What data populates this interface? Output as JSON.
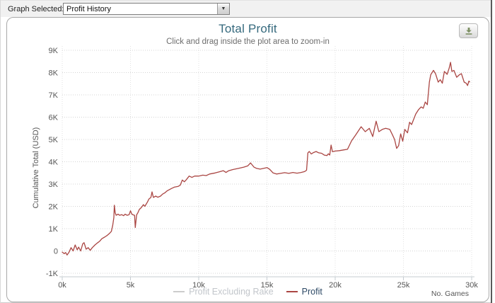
{
  "toolbar": {
    "label": "Graph Selected:",
    "value": "Profit History"
  },
  "chart": {
    "title": "Total Profit",
    "subtitle": "Click and drag inside the plot area to zoom-in",
    "y_axis_title": "Cumulative Total (USD)",
    "x_axis_title": "No. Games",
    "legend": [
      {
        "label": "Profit Excluding Rake",
        "text_color": "#c2c6cb",
        "line_color": "#cccccc",
        "active": false
      },
      {
        "label": "Profit",
        "text_color": "#2e4a66",
        "line_color": "#AA4643",
        "active": true
      }
    ]
  },
  "colors": {
    "line": "#AA4643",
    "title": "#35697d",
    "subtitle": "#6e6e6e",
    "axis_label": "#565656",
    "grid": "#d4d4d4",
    "grid_vertical": "#e2e2e2",
    "axis_line": "#c6ccd2",
    "download_icon": "#7d8f63",
    "dropdown_arrow": "#333333"
  },
  "chart_data": {
    "type": "line",
    "title": "Total Profit",
    "subtitle": "Click and drag inside the plot area to zoom-in",
    "xlabel": "No. Games",
    "ylabel": "Cumulative Total (USD)",
    "x_unit": "thousands of games",
    "y_unit": "thousands of USD",
    "xlim": [
      0,
      30
    ],
    "ylim": [
      -1,
      9
    ],
    "grid": "dotted",
    "legend_position": "bottom-center",
    "x_ticks": [
      {
        "v": 0,
        "label": "0k"
      },
      {
        "v": 5,
        "label": "5k"
      },
      {
        "v": 10,
        "label": "10k"
      },
      {
        "v": 15,
        "label": "15k"
      },
      {
        "v": 20,
        "label": "20k"
      },
      {
        "v": 25,
        "label": "25k"
      },
      {
        "v": 30,
        "label": "30k"
      }
    ],
    "y_ticks": [
      {
        "v": 9,
        "label": "9K"
      },
      {
        "v": 8,
        "label": "8K"
      },
      {
        "v": 7,
        "label": "7K"
      },
      {
        "v": 6,
        "label": "6K"
      },
      {
        "v": 5,
        "label": "5K"
      },
      {
        "v": 4,
        "label": "4K"
      },
      {
        "v": 3,
        "label": "3K"
      },
      {
        "v": 2,
        "label": "2K"
      },
      {
        "v": 1,
        "label": "1K"
      },
      {
        "v": 0,
        "label": "0"
      },
      {
        "v": -1,
        "label": "-1K"
      }
    ],
    "series": [
      {
        "name": "Profit Excluding Rake",
        "visible": false,
        "color": "#cccccc",
        "points": []
      },
      {
        "name": "Profit",
        "visible": true,
        "color": "#AA4643",
        "points": [
          [
            0,
            -0.05
          ],
          [
            0.15,
            -0.12
          ],
          [
            0.25,
            -0.07
          ],
          [
            0.35,
            -0.18
          ],
          [
            0.5,
            -0.05
          ],
          [
            0.65,
            0.15
          ],
          [
            0.8,
            0.0
          ],
          [
            0.95,
            0.27
          ],
          [
            1.1,
            0.05
          ],
          [
            1.2,
            0.17
          ],
          [
            1.35,
            0.0
          ],
          [
            1.5,
            0.32
          ],
          [
            1.6,
            0.37
          ],
          [
            1.75,
            0.08
          ],
          [
            1.9,
            0.15
          ],
          [
            2.05,
            0.03
          ],
          [
            2.2,
            0.15
          ],
          [
            2.4,
            0.27
          ],
          [
            2.6,
            0.37
          ],
          [
            2.75,
            0.44
          ],
          [
            2.9,
            0.55
          ],
          [
            3.1,
            0.62
          ],
          [
            3.3,
            0.7
          ],
          [
            3.45,
            0.78
          ],
          [
            3.6,
            0.88
          ],
          [
            3.7,
            1.15
          ],
          [
            3.78,
            1.5
          ],
          [
            3.82,
            2.05
          ],
          [
            3.88,
            1.72
          ],
          [
            3.95,
            1.6
          ],
          [
            4.1,
            1.65
          ],
          [
            4.2,
            1.6
          ],
          [
            4.35,
            1.63
          ],
          [
            4.5,
            1.58
          ],
          [
            4.6,
            1.65
          ],
          [
            4.75,
            1.6
          ],
          [
            4.9,
            1.63
          ],
          [
            5.0,
            1.8
          ],
          [
            5.1,
            1.65
          ],
          [
            5.2,
            1.62
          ],
          [
            5.3,
            1.6
          ],
          [
            5.35,
            1.05
          ],
          [
            5.45,
            1.62
          ],
          [
            5.55,
            1.72
          ],
          [
            5.65,
            1.86
          ],
          [
            5.8,
            1.95
          ],
          [
            5.95,
            2.08
          ],
          [
            6.05,
            2.0
          ],
          [
            6.15,
            2.1
          ],
          [
            6.25,
            2.2
          ],
          [
            6.35,
            2.33
          ],
          [
            6.5,
            2.4
          ],
          [
            6.58,
            2.65
          ],
          [
            6.68,
            2.4
          ],
          [
            6.85,
            2.46
          ],
          [
            7.0,
            2.41
          ],
          [
            7.2,
            2.46
          ],
          [
            7.35,
            2.55
          ],
          [
            7.5,
            2.6
          ],
          [
            7.7,
            2.7
          ],
          [
            8.0,
            2.8
          ],
          [
            8.2,
            2.86
          ],
          [
            8.5,
            2.9
          ],
          [
            8.65,
            2.95
          ],
          [
            8.8,
            3.18
          ],
          [
            8.95,
            3.1
          ],
          [
            9.1,
            3.2
          ],
          [
            9.3,
            3.36
          ],
          [
            9.5,
            3.3
          ],
          [
            9.7,
            3.36
          ],
          [
            10.0,
            3.36
          ],
          [
            10.3,
            3.4
          ],
          [
            10.55,
            3.38
          ],
          [
            10.8,
            3.45
          ],
          [
            11.2,
            3.5
          ],
          [
            11.5,
            3.55
          ],
          [
            11.8,
            3.6
          ],
          [
            12.0,
            3.52
          ],
          [
            12.2,
            3.6
          ],
          [
            12.5,
            3.65
          ],
          [
            12.9,
            3.7
          ],
          [
            13.3,
            3.76
          ],
          [
            13.6,
            3.82
          ],
          [
            13.8,
            3.95
          ],
          [
            14.05,
            3.76
          ],
          [
            14.25,
            3.7
          ],
          [
            14.5,
            3.67
          ],
          [
            14.8,
            3.71
          ],
          [
            15.0,
            3.74
          ],
          [
            15.2,
            3.66
          ],
          [
            15.45,
            3.5
          ],
          [
            15.7,
            3.45
          ],
          [
            16.0,
            3.48
          ],
          [
            16.3,
            3.51
          ],
          [
            16.6,
            3.48
          ],
          [
            16.9,
            3.52
          ],
          [
            17.2,
            3.49
          ],
          [
            17.5,
            3.52
          ],
          [
            17.75,
            3.56
          ],
          [
            17.9,
            3.62
          ],
          [
            18.0,
            4.4
          ],
          [
            18.1,
            4.46
          ],
          [
            18.25,
            4.35
          ],
          [
            18.4,
            4.41
          ],
          [
            18.6,
            4.46
          ],
          [
            18.8,
            4.4
          ],
          [
            19.0,
            4.38
          ],
          [
            19.2,
            4.3
          ],
          [
            19.4,
            4.28
          ],
          [
            19.5,
            4.36
          ],
          [
            19.6,
            4.3
          ],
          [
            19.7,
            4.75
          ],
          [
            19.8,
            4.45
          ],
          [
            20.0,
            4.48
          ],
          [
            20.3,
            4.5
          ],
          [
            20.6,
            4.53
          ],
          [
            20.9,
            4.56
          ],
          [
            21.2,
            4.94
          ],
          [
            21.5,
            5.2
          ],
          [
            21.9,
            5.57
          ],
          [
            22.2,
            5.35
          ],
          [
            22.5,
            5.5
          ],
          [
            22.75,
            5.13
          ],
          [
            23.0,
            5.82
          ],
          [
            23.2,
            5.35
          ],
          [
            23.45,
            5.45
          ],
          [
            23.7,
            5.5
          ],
          [
            24.0,
            5.45
          ],
          [
            24.2,
            5.2
          ],
          [
            24.35,
            5.0
          ],
          [
            24.5,
            4.6
          ],
          [
            24.65,
            4.72
          ],
          [
            24.8,
            5.25
          ],
          [
            24.95,
            4.92
          ],
          [
            25.1,
            5.45
          ],
          [
            25.3,
            5.3
          ],
          [
            25.45,
            5.77
          ],
          [
            25.6,
            5.67
          ],
          [
            25.9,
            6.14
          ],
          [
            26.1,
            6.33
          ],
          [
            26.3,
            6.46
          ],
          [
            26.45,
            6.4
          ],
          [
            26.6,
            6.68
          ],
          [
            26.75,
            6.56
          ],
          [
            26.9,
            7.57
          ],
          [
            27.0,
            7.9
          ],
          [
            27.2,
            8.1
          ],
          [
            27.35,
            7.95
          ],
          [
            27.55,
            7.57
          ],
          [
            27.7,
            7.68
          ],
          [
            27.85,
            7.52
          ],
          [
            28.0,
            8.05
          ],
          [
            28.2,
            7.92
          ],
          [
            28.35,
            8.2
          ],
          [
            28.45,
            8.46
          ],
          [
            28.55,
            8.05
          ],
          [
            28.7,
            8.1
          ],
          [
            28.9,
            7.79
          ],
          [
            29.1,
            7.9
          ],
          [
            29.25,
            7.95
          ],
          [
            29.45,
            7.57
          ],
          [
            29.6,
            7.52
          ],
          [
            29.7,
            7.42
          ],
          [
            29.8,
            7.62
          ],
          [
            29.85,
            7.58
          ]
        ]
      }
    ]
  }
}
